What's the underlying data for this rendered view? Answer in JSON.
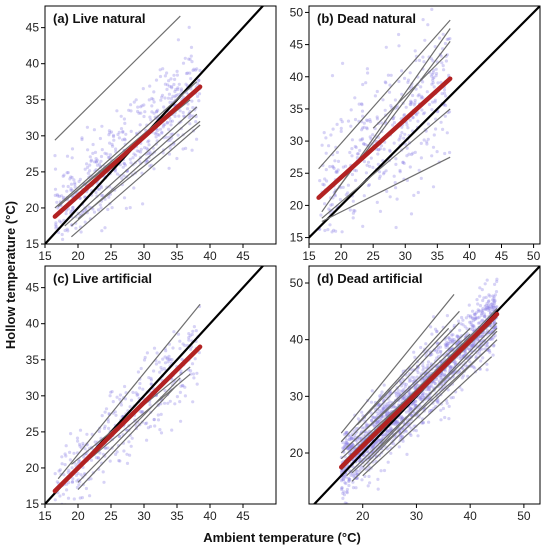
{
  "figure": {
    "xlabel": "Ambient temperature (°C)",
    "ylabel": "Hollow temperature (°C)"
  },
  "colors": {
    "points": "#8b80e6",
    "site_lines": "#6e6e6e",
    "mean_line": "#b22222",
    "identity_line": "#000000"
  },
  "chart_data": [
    {
      "type": "scatter",
      "title": "(a) Live natural",
      "xlim": [
        15,
        50
      ],
      "ylim": [
        15,
        48
      ],
      "xticks": [
        15,
        20,
        25,
        30,
        35,
        40,
        45
      ],
      "yticks": [
        15,
        20,
        25,
        30,
        35,
        40,
        45
      ],
      "identity_line": true,
      "mean_line": [
        [
          16.5,
          18.8
        ],
        [
          38.5,
          36.8
        ]
      ],
      "site_lines": [
        [
          [
            16.5,
            29.4
          ],
          [
            35.5,
            46.6
          ]
        ],
        [
          [
            16.5,
            20.0
          ],
          [
            38.0,
            37.5
          ]
        ],
        [
          [
            17.0,
            20.2
          ],
          [
            38.0,
            36.5
          ]
        ],
        [
          [
            18.0,
            21.0
          ],
          [
            37.0,
            35.0
          ]
        ],
        [
          [
            18.0,
            17.5
          ],
          [
            38.0,
            34.0
          ]
        ],
        [
          [
            19.0,
            16.0
          ],
          [
            38.5,
            31.5
          ]
        ],
        [
          [
            19.0,
            17.5
          ],
          [
            38.0,
            33.0
          ]
        ],
        [
          [
            20.0,
            18.5
          ],
          [
            38.5,
            32.0
          ]
        ],
        [
          [
            20.0,
            21.5
          ],
          [
            37.5,
            36.0
          ]
        ],
        [
          [
            22.0,
            23.0
          ],
          [
            37.0,
            35.5
          ]
        ]
      ],
      "points": {
        "count": 520,
        "x_range": [
          16.5,
          38.5
        ],
        "slope": 0.85,
        "intercept": 4.5,
        "spread": 3.2
      }
    },
    {
      "type": "scatter",
      "title": "(b) Dead natural",
      "xlim": [
        15,
        51
      ],
      "ylim": [
        14,
        51
      ],
      "xticks": [
        15,
        20,
        25,
        30,
        35,
        40,
        45,
        50
      ],
      "yticks": [
        15,
        20,
        25,
        30,
        35,
        40,
        45,
        50
      ],
      "identity_line": true,
      "mean_line": [
        [
          16.5,
          21.2
        ],
        [
          37.0,
          39.7
        ]
      ],
      "site_lines": [
        [
          [
            16.5,
            25.7
          ],
          [
            37.0,
            48.8
          ]
        ],
        [
          [
            17.0,
            19.0
          ],
          [
            37.0,
            47.5
          ]
        ],
        [
          [
            17.0,
            18.0
          ],
          [
            37.0,
            35.0
          ]
        ],
        [
          [
            17.0,
            17.5
          ],
          [
            37.0,
            27.5
          ]
        ],
        [
          [
            19.0,
            22.0
          ],
          [
            37.0,
            45.5
          ]
        ],
        [
          [
            25.0,
            32.0
          ],
          [
            36.5,
            43.5
          ]
        ]
      ],
      "points": {
        "count": 420,
        "x_range": [
          16.5,
          37.0
        ],
        "slope": 0.9,
        "intercept": 6.5,
        "spread": 5.5
      }
    },
    {
      "type": "scatter",
      "title": "(c) Live artificial",
      "xlim": [
        15,
        50
      ],
      "ylim": [
        15,
        48
      ],
      "xticks": [
        15,
        20,
        25,
        30,
        35,
        40,
        45
      ],
      "yticks": [
        15,
        20,
        25,
        30,
        35,
        40,
        45
      ],
      "identity_line": true,
      "mean_line": [
        [
          16.5,
          16.8
        ],
        [
          38.5,
          36.8
        ]
      ],
      "site_lines": [
        [
          [
            17.0,
            18.5
          ],
          [
            38.5,
            42.7
          ]
        ],
        [
          [
            16.5,
            16.5
          ],
          [
            38.5,
            37.0
          ]
        ],
        [
          [
            19.0,
            20.5
          ],
          [
            37.0,
            34.0
          ]
        ],
        [
          [
            19.5,
            19.5
          ],
          [
            37.0,
            33.0
          ]
        ],
        [
          [
            20.0,
            17.0
          ],
          [
            35.0,
            31.5
          ]
        ],
        [
          [
            20.0,
            18.0
          ],
          [
            35.5,
            32.5
          ]
        ]
      ],
      "points": {
        "count": 360,
        "x_range": [
          16.5,
          38.5
        ],
        "slope": 0.9,
        "intercept": 1.8,
        "spread": 2.8
      }
    },
    {
      "type": "scatter",
      "title": "(d) Dead artificial",
      "xlim": [
        10,
        53
      ],
      "ylim": [
        11,
        53
      ],
      "xticks": [
        20,
        30,
        40,
        50
      ],
      "yticks": [
        20,
        30,
        40,
        50
      ],
      "identity_line": true,
      "mean_line": [
        [
          16.0,
          17.5
        ],
        [
          45.0,
          44.5
        ]
      ],
      "site_lines": [
        [
          [
            16.0,
            23.5
          ],
          [
            37.0,
            48.0
          ]
        ],
        [
          [
            16.0,
            22.0
          ],
          [
            38.0,
            45.0
          ]
        ],
        [
          [
            16.0,
            20.0
          ],
          [
            40.0,
            42.0
          ]
        ],
        [
          [
            16.0,
            19.0
          ],
          [
            45.0,
            44.0
          ]
        ],
        [
          [
            16.0,
            17.0
          ],
          [
            45.0,
            45.5
          ]
        ],
        [
          [
            17.0,
            18.0
          ],
          [
            44.0,
            43.0
          ]
        ],
        [
          [
            17.0,
            16.0
          ],
          [
            45.0,
            42.0
          ]
        ],
        [
          [
            18.0,
            15.0
          ],
          [
            45.0,
            40.0
          ]
        ],
        [
          [
            18.0,
            16.5
          ],
          [
            44.0,
            39.0
          ]
        ],
        [
          [
            20.0,
            16.0
          ],
          [
            44.0,
            37.0
          ]
        ],
        [
          [
            17.0,
            21.0
          ],
          [
            40.0,
            41.0
          ]
        ],
        [
          [
            18.0,
            23.0
          ],
          [
            38.0,
            43.0
          ]
        ],
        [
          [
            19.0,
            25.0
          ],
          [
            36.0,
            42.0
          ]
        ],
        [
          [
            20.0,
            17.5
          ],
          [
            45.0,
            41.5
          ]
        ],
        [
          [
            16.5,
            18.5
          ],
          [
            42.0,
            42.5
          ]
        ],
        [
          [
            21.0,
            19.0
          ],
          [
            45.0,
            43.0
          ]
        ]
      ],
      "points": {
        "count": 1600,
        "x_range": [
          16.0,
          45.0
        ],
        "slope": 0.93,
        "intercept": 2.5,
        "spread": 3.0
      }
    }
  ]
}
